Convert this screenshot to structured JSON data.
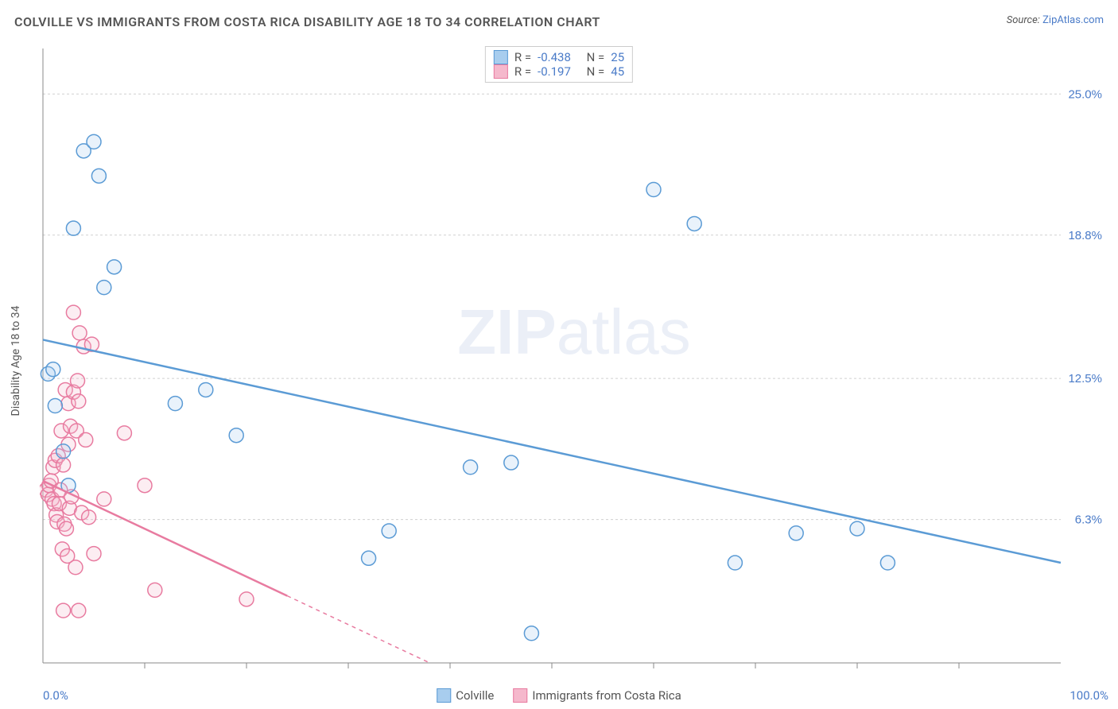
{
  "header": {
    "title": "COLVILLE VS IMMIGRANTS FROM COSTA RICA DISABILITY AGE 18 TO 34 CORRELATION CHART",
    "source_prefix": "Source: ",
    "source_link": "ZipAtlas.com"
  },
  "chart": {
    "type": "scatter",
    "ylabel": "Disability Age 18 to 34",
    "watermark_bold": "ZIP",
    "watermark_light": "atlas",
    "xlim": [
      0,
      100
    ],
    "ylim": [
      0,
      27
    ],
    "xlim_labels": {
      "min": "0.0%",
      "max": "100.0%"
    },
    "ytick_labels": [
      "6.3%",
      "12.5%",
      "18.8%",
      "25.0%"
    ],
    "ytick_values": [
      6.3,
      12.5,
      18.8,
      25.0
    ],
    "xtick_values": [
      10,
      20,
      30,
      40,
      50,
      60,
      70,
      80,
      90
    ],
    "background_color": "#ffffff",
    "grid_color": "#d0d0d0",
    "grid_dash": "3,3",
    "axis_color": "#888888",
    "marker_radius": 9,
    "marker_stroke_width": 1.5,
    "marker_fill_opacity": 0.25,
    "trend_line_width": 2.5,
    "series": [
      {
        "name": "Colville",
        "color_stroke": "#5b9bd5",
        "color_fill": "#a8cdee",
        "R": "-0.438",
        "N": "25",
        "trend": {
          "x1": 0,
          "y1": 14.2,
          "x2": 100,
          "y2": 4.4,
          "dash_after_x": null
        },
        "points": [
          [
            0.5,
            12.7
          ],
          [
            1,
            12.9
          ],
          [
            1.2,
            11.3
          ],
          [
            2,
            9.3
          ],
          [
            2.5,
            7.8
          ],
          [
            3,
            19.1
          ],
          [
            4,
            22.5
          ],
          [
            5,
            22.9
          ],
          [
            5.5,
            21.4
          ],
          [
            6,
            16.5
          ],
          [
            7,
            17.4
          ],
          [
            13,
            11.4
          ],
          [
            16,
            12.0
          ],
          [
            19,
            10.0
          ],
          [
            32,
            4.6
          ],
          [
            34,
            5.8
          ],
          [
            42,
            8.6
          ],
          [
            46,
            8.8
          ],
          [
            48,
            1.3
          ],
          [
            60,
            20.8
          ],
          [
            64,
            19.3
          ],
          [
            68,
            4.4
          ],
          [
            74,
            5.7
          ],
          [
            80,
            5.9
          ],
          [
            83,
            4.4
          ]
        ]
      },
      {
        "name": "Immigants from Costa Rica",
        "legend_label": "Immigrants from Costa Rica",
        "color_stroke": "#e87ba0",
        "color_fill": "#f5b8cc",
        "R": "-0.197",
        "N": "45",
        "trend": {
          "x1": 0,
          "y1": 8.0,
          "x2": 38,
          "y2": 0,
          "dash_after_x": 24
        },
        "points": [
          [
            0.3,
            7.6
          ],
          [
            0.5,
            7.4
          ],
          [
            0.6,
            7.8
          ],
          [
            0.8,
            8.0
          ],
          [
            0.9,
            7.2
          ],
          [
            1.0,
            8.6
          ],
          [
            1.1,
            7.0
          ],
          [
            1.2,
            8.9
          ],
          [
            1.3,
            6.5
          ],
          [
            1.4,
            6.2
          ],
          [
            1.5,
            9.1
          ],
          [
            1.6,
            7.0
          ],
          [
            1.7,
            7.6
          ],
          [
            1.8,
            10.2
          ],
          [
            1.9,
            5.0
          ],
          [
            2.0,
            8.7
          ],
          [
            2.1,
            6.1
          ],
          [
            2.2,
            12.0
          ],
          [
            2.3,
            5.9
          ],
          [
            2.4,
            4.7
          ],
          [
            2.5,
            9.6
          ],
          [
            2.5,
            11.4
          ],
          [
            2.6,
            6.8
          ],
          [
            2.7,
            10.4
          ],
          [
            2.8,
            7.3
          ],
          [
            3.0,
            11.9
          ],
          [
            3.0,
            15.4
          ],
          [
            3.2,
            4.2
          ],
          [
            3.3,
            10.2
          ],
          [
            3.4,
            12.4
          ],
          [
            3.5,
            11.5
          ],
          [
            3.6,
            14.5
          ],
          [
            3.8,
            6.6
          ],
          [
            4.0,
            13.9
          ],
          [
            4.2,
            9.8
          ],
          [
            4.5,
            6.4
          ],
          [
            4.8,
            14.0
          ],
          [
            5.0,
            4.8
          ],
          [
            2.0,
            2.3
          ],
          [
            3.5,
            2.3
          ],
          [
            6.0,
            7.2
          ],
          [
            8.0,
            10.1
          ],
          [
            10.0,
            7.8
          ],
          [
            11.0,
            3.2
          ],
          [
            20.0,
            2.8
          ]
        ]
      }
    ],
    "stats_legend": {
      "label_R": "R =",
      "label_N": "N ="
    },
    "bottom_legend": {
      "items": [
        "Colville",
        "Immigrants from Costa Rica"
      ]
    }
  }
}
